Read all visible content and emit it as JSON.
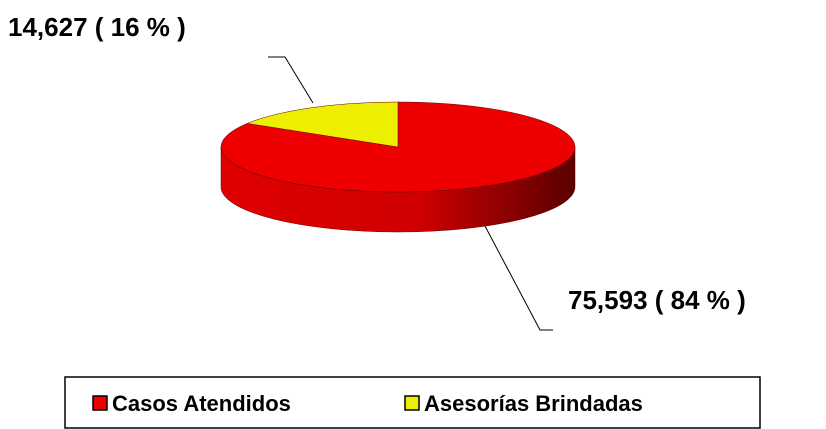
{
  "chart_data": {
    "type": "pie",
    "categories": [
      "Casos Atendidos",
      "Asesorías Brindadas"
    ],
    "values": [
      75593,
      14627
    ],
    "value_labels": [
      "75,593 ( 84 % )",
      "14,627 ( 16 % )"
    ],
    "colors": [
      "#ee0000",
      "#eeee00"
    ],
    "legend": "bottom"
  }
}
